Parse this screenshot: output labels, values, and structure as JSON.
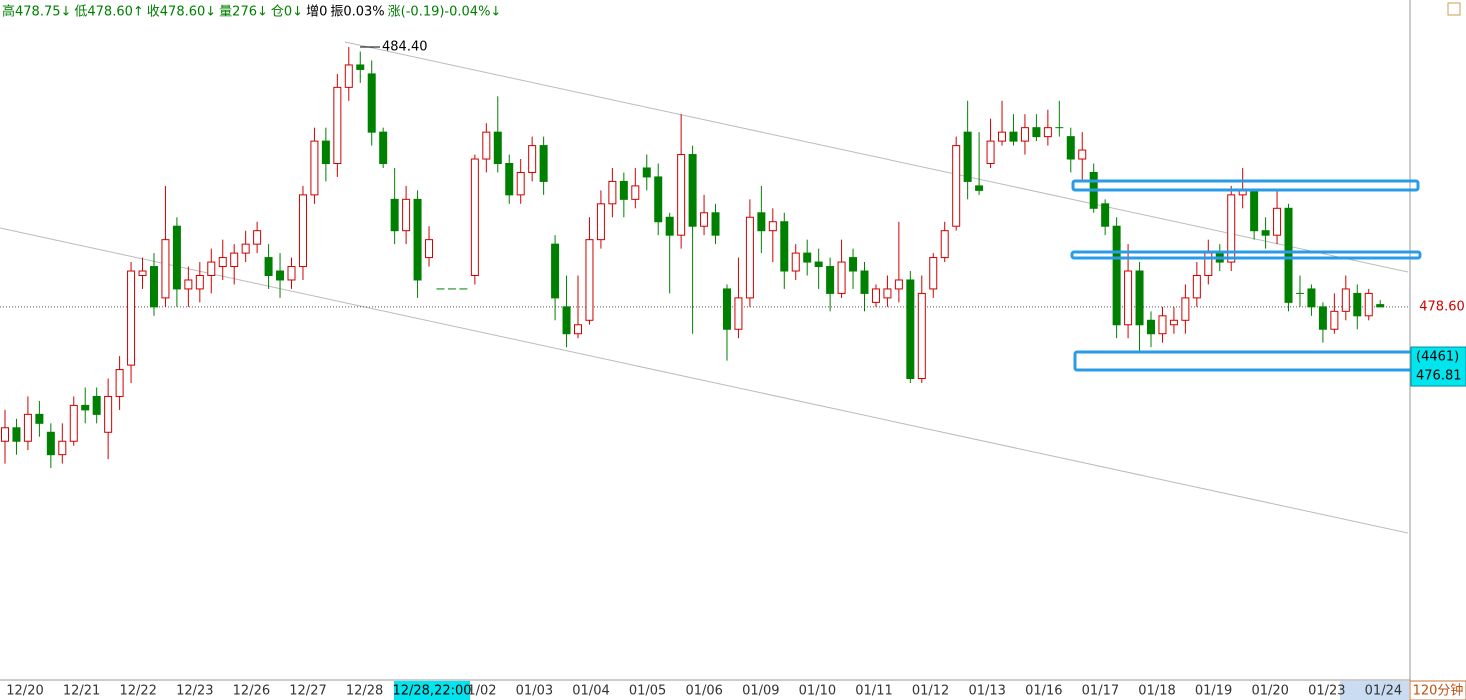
{
  "chart_data": {
    "type": "candlestick",
    "header": [
      {
        "text": "高478.75↓",
        "color": "#008000"
      },
      {
        "text": "低478.60↑",
        "color": "#008000"
      },
      {
        "text": "收478.60↓",
        "color": "#008000"
      },
      {
        "text": "量276↓",
        "color": "#008000"
      },
      {
        "text": "仓0↓",
        "color": "#008000"
      },
      {
        "text": "增0",
        "color": "#000000"
      },
      {
        "text": "振0.03%",
        "color": "#000000"
      },
      {
        "text": "涨(-0.19)-0.04%↓",
        "color": "#008000"
      }
    ],
    "categories": [
      "12/20",
      "12/21",
      "12/22",
      "12/23",
      "12/26",
      "12/27",
      "12/28",
      null,
      "01/02",
      "01/03",
      "01/04",
      "01/05",
      "01/06",
      "01/09",
      "01/10",
      "01/11",
      "01/12",
      "01/13",
      "01/16",
      "01/17",
      "01/18",
      "01/19",
      "01/20",
      "01/23",
      "01/24"
    ],
    "ylim": [
      470.27,
      485.45
    ],
    "up_color": "#d00000",
    "down_color": "#008000",
    "ohlc": [
      [
        475.6,
        476.3,
        475.1,
        475.9
      ],
      [
        475.9,
        476.1,
        475.3,
        475.6
      ],
      [
        475.6,
        476.6,
        475.4,
        476.2
      ],
      [
        476.2,
        476.5,
        475.7,
        476.0
      ],
      [
        475.8,
        476.0,
        475.0,
        475.3
      ],
      [
        475.3,
        476.0,
        475.1,
        475.6
      ],
      [
        475.6,
        476.6,
        475.5,
        476.4
      ],
      [
        476.4,
        476.8,
        476.0,
        476.3
      ],
      [
        476.6,
        476.8,
        476.0,
        476.2
      ],
      [
        475.8,
        477.0,
        475.2,
        476.6
      ],
      [
        476.6,
        477.5,
        476.3,
        477.2
      ],
      [
        477.3,
        479.6,
        476.9,
        479.4
      ],
      [
        479.3,
        479.7,
        479.0,
        479.4
      ],
      [
        479.5,
        479.8,
        478.4,
        478.6
      ],
      [
        478.8,
        481.3,
        478.6,
        480.1
      ],
      [
        480.4,
        480.6,
        478.6,
        479.0
      ],
      [
        479.0,
        479.5,
        478.6,
        479.2
      ],
      [
        479.0,
        479.6,
        478.7,
        479.3
      ],
      [
        479.3,
        479.9,
        478.9,
        479.6
      ],
      [
        479.5,
        480.1,
        479.2,
        479.7
      ],
      [
        479.5,
        480.0,
        479.1,
        479.8
      ],
      [
        479.8,
        480.3,
        479.6,
        480.0
      ],
      [
        480.0,
        480.5,
        479.8,
        480.3
      ],
      [
        479.7,
        480.0,
        479.0,
        479.3
      ],
      [
        479.4,
        479.8,
        478.8,
        479.2
      ],
      [
        479.2,
        479.7,
        479.0,
        479.5
      ],
      [
        479.5,
        481.3,
        479.2,
        481.1
      ],
      [
        481.1,
        482.6,
        480.9,
        482.3
      ],
      [
        482.3,
        482.6,
        481.4,
        481.8
      ],
      [
        481.8,
        483.8,
        481.5,
        483.5
      ],
      [
        483.5,
        484.4,
        483.2,
        484.0
      ],
      [
        484.0,
        484.3,
        483.6,
        483.9
      ],
      [
        483.8,
        484.1,
        482.2,
        482.5
      ],
      [
        482.5,
        482.6,
        481.7,
        481.8
      ],
      [
        481.0,
        481.7,
        480.0,
        480.3
      ],
      [
        480.3,
        481.3,
        480.0,
        481.0
      ],
      [
        481.0,
        481.2,
        478.8,
        479.2
      ],
      [
        479.7,
        480.4,
        479.5,
        480.1
      ],
      [
        479.0,
        479.0,
        479.0,
        479.0
      ],
      [
        479.0,
        479.0,
        479.0,
        479.0
      ],
      [
        479.0,
        479.0,
        479.0,
        479.0
      ],
      [
        479.3,
        482.0,
        479.1,
        481.9
      ],
      [
        481.9,
        482.7,
        481.6,
        482.5
      ],
      [
        482.5,
        483.3,
        481.6,
        481.8
      ],
      [
        481.8,
        482.0,
        480.9,
        481.1
      ],
      [
        481.1,
        481.9,
        480.9,
        481.6
      ],
      [
        481.6,
        482.4,
        481.4,
        482.2
      ],
      [
        482.2,
        482.4,
        481.1,
        481.4
      ],
      [
        480.0,
        480.2,
        478.3,
        478.8
      ],
      [
        478.6,
        479.3,
        477.7,
        478.0
      ],
      [
        478.0,
        479.3,
        477.9,
        478.2
      ],
      [
        478.3,
        480.6,
        478.2,
        480.1
      ],
      [
        480.1,
        481.2,
        479.9,
        480.9
      ],
      [
        480.9,
        481.7,
        480.6,
        481.4
      ],
      [
        481.4,
        481.6,
        480.6,
        481.0
      ],
      [
        481.0,
        481.7,
        480.8,
        481.3
      ],
      [
        481.7,
        482.0,
        481.2,
        481.5
      ],
      [
        481.5,
        481.8,
        480.2,
        480.5
      ],
      [
        480.6,
        480.7,
        478.9,
        480.2
      ],
      [
        480.2,
        482.9,
        479.9,
        482.0
      ],
      [
        482.0,
        482.2,
        478.0,
        480.4
      ],
      [
        480.4,
        481.1,
        480.2,
        480.7
      ],
      [
        480.7,
        480.9,
        480.0,
        480.2
      ],
      [
        479.0,
        479.1,
        477.4,
        478.1
      ],
      [
        478.1,
        479.7,
        477.9,
        478.8
      ],
      [
        478.8,
        481.0,
        478.6,
        480.6
      ],
      [
        480.7,
        481.3,
        479.8,
        480.3
      ],
      [
        480.3,
        480.8,
        479.6,
        480.5
      ],
      [
        480.5,
        480.7,
        479.0,
        479.4
      ],
      [
        479.4,
        480.0,
        479.2,
        479.8
      ],
      [
        479.8,
        480.1,
        479.3,
        479.6
      ],
      [
        479.6,
        479.9,
        479.0,
        479.5
      ],
      [
        479.5,
        479.7,
        478.5,
        478.9
      ],
      [
        478.9,
        480.1,
        478.8,
        479.6
      ],
      [
        479.7,
        479.9,
        479.0,
        479.4
      ],
      [
        479.4,
        479.6,
        478.5,
        478.9
      ],
      [
        478.7,
        479.1,
        478.6,
        479.0
      ],
      [
        478.8,
        479.3,
        478.6,
        479.0
      ],
      [
        479.0,
        480.5,
        478.7,
        479.2
      ],
      [
        479.2,
        479.4,
        476.9,
        477.0
      ],
      [
        477.0,
        479.3,
        476.9,
        478.9
      ],
      [
        479.0,
        479.8,
        478.8,
        479.7
      ],
      [
        479.7,
        480.5,
        479.6,
        480.3
      ],
      [
        480.4,
        482.4,
        480.3,
        482.2
      ],
      [
        482.5,
        483.2,
        481.0,
        481.4
      ],
      [
        481.3,
        482.5,
        481.1,
        481.2
      ],
      [
        481.8,
        482.8,
        481.7,
        482.3
      ],
      [
        482.3,
        483.2,
        482.2,
        482.5
      ],
      [
        482.5,
        482.9,
        482.2,
        482.3
      ],
      [
        482.3,
        482.9,
        482.0,
        482.6
      ],
      [
        482.6,
        482.9,
        482.3,
        482.4
      ],
      [
        482.4,
        483.0,
        482.2,
        482.6
      ],
      [
        482.6,
        483.2,
        482.4,
        482.6
      ],
      [
        482.4,
        482.6,
        481.6,
        481.9
      ],
      [
        481.9,
        482.5,
        481.4,
        482.1
      ],
      [
        481.6,
        481.8,
        480.7,
        480.8
      ],
      [
        480.9,
        481.0,
        480.2,
        480.4
      ],
      [
        480.4,
        480.6,
        477.9,
        478.2
      ],
      [
        478.2,
        480.0,
        477.9,
        479.4
      ],
      [
        479.4,
        479.6,
        477.6,
        478.2
      ],
      [
        478.3,
        478.5,
        477.7,
        478.0
      ],
      [
        478.0,
        478.6,
        477.8,
        478.4
      ],
      [
        478.2,
        478.6,
        478.0,
        478.3
      ],
      [
        478.3,
        479.1,
        478.0,
        478.8
      ],
      [
        478.8,
        479.6,
        478.6,
        479.3
      ],
      [
        479.3,
        480.1,
        479.1,
        479.8
      ],
      [
        479.8,
        480.0,
        479.4,
        479.6
      ],
      [
        479.6,
        481.3,
        479.4,
        481.1
      ],
      [
        481.1,
        481.7,
        480.8,
        481.2
      ],
      [
        481.2,
        481.2,
        480.1,
        480.3
      ],
      [
        480.3,
        480.6,
        479.9,
        480.2
      ],
      [
        480.2,
        481.2,
        480.0,
        480.8
      ],
      [
        480.8,
        480.9,
        478.5,
        478.7
      ],
      [
        478.9,
        479.3,
        478.6,
        478.9
      ],
      [
        479.0,
        479.1,
        478.4,
        478.6
      ],
      [
        478.6,
        478.7,
        477.8,
        478.1
      ],
      [
        478.1,
        478.9,
        478.0,
        478.5
      ],
      [
        478.5,
        479.3,
        478.3,
        479.0
      ],
      [
        478.9,
        479.1,
        478.1,
        478.4
      ],
      [
        478.4,
        479.0,
        478.3,
        478.9
      ],
      [
        478.65,
        478.75,
        478.6,
        478.6
      ]
    ],
    "high_marker": {
      "value": 484.4,
      "label": "484.40"
    },
    "last_price": {
      "value": 478.6,
      "label": "478.60"
    },
    "crosshair": {
      "x_label": "12/28,22:00",
      "volume_label": "(4461)",
      "price": {
        "value": 476.81,
        "label": "476.81"
      }
    },
    "period": "120分钟"
  }
}
